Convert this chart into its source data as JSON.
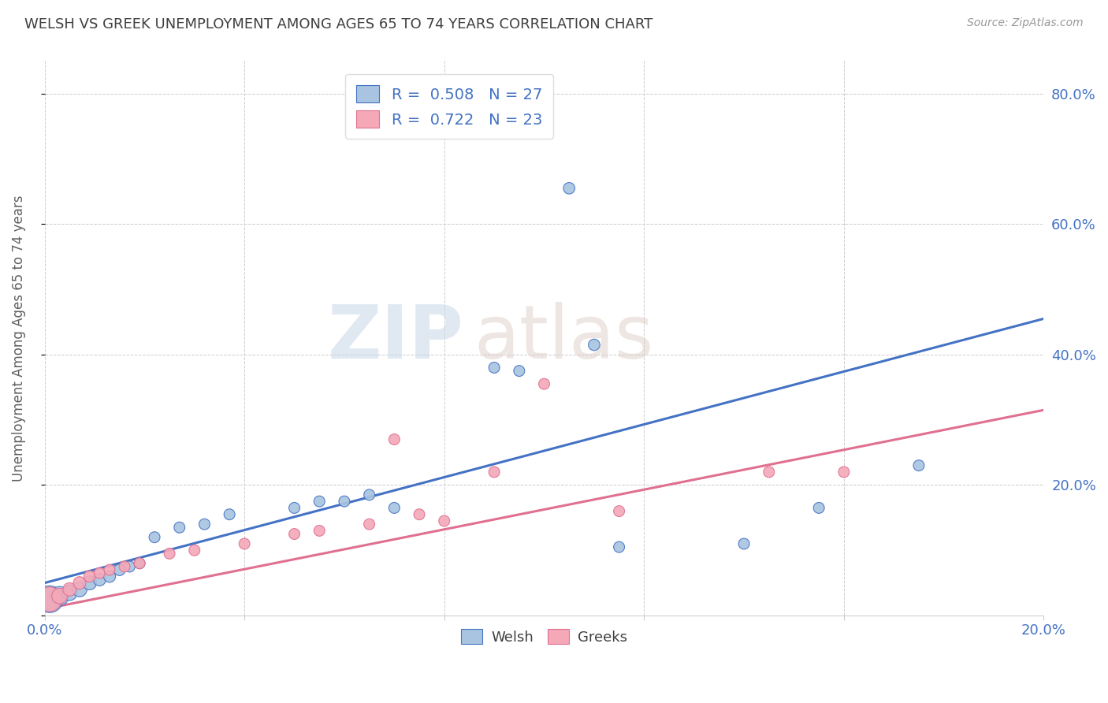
{
  "title": "WELSH VS GREEK UNEMPLOYMENT AMONG AGES 65 TO 74 YEARS CORRELATION CHART",
  "source": "Source: ZipAtlas.com",
  "ylabel": "Unemployment Among Ages 65 to 74 years",
  "xlim": [
    0.0,
    0.2
  ],
  "ylim": [
    0.0,
    0.85
  ],
  "x_ticks": [
    0.0,
    0.04,
    0.08,
    0.12,
    0.16,
    0.2
  ],
  "x_tick_labels": [
    "0.0%",
    "",
    "",
    "",
    "",
    "20.0%"
  ],
  "y_ticks": [
    0.0,
    0.2,
    0.4,
    0.6,
    0.8
  ],
  "y_tick_labels": [
    "",
    "20.0%",
    "40.0%",
    "60.0%",
    "80.0%"
  ],
  "welsh_color": "#a8c4e0",
  "greek_color": "#f4a8b8",
  "welsh_line_color": "#4472c4",
  "greek_line_color": "#e07090",
  "welsh_R": 0.508,
  "welsh_N": 27,
  "greek_R": 0.722,
  "greek_N": 23,
  "watermark_zip": "ZIP",
  "watermark_atlas": "atlas",
  "welsh_x": [
    0.001,
    0.003,
    0.005,
    0.007,
    0.009,
    0.011,
    0.013,
    0.015,
    0.017,
    0.019,
    0.022,
    0.027,
    0.032,
    0.037,
    0.05,
    0.055,
    0.06,
    0.065,
    0.07,
    0.09,
    0.095,
    0.105,
    0.11,
    0.115,
    0.14,
    0.155,
    0.175
  ],
  "welsh_y": [
    0.025,
    0.03,
    0.035,
    0.04,
    0.05,
    0.055,
    0.06,
    0.07,
    0.075,
    0.08,
    0.12,
    0.135,
    0.14,
    0.155,
    0.165,
    0.175,
    0.175,
    0.185,
    0.165,
    0.38,
    0.375,
    0.655,
    0.415,
    0.105,
    0.11,
    0.165,
    0.23
  ],
  "welsh_size": [
    600,
    300,
    200,
    180,
    160,
    130,
    120,
    110,
    100,
    100,
    100,
    100,
    100,
    100,
    100,
    100,
    100,
    100,
    100,
    100,
    100,
    110,
    110,
    100,
    100,
    100,
    100
  ],
  "greek_x": [
    0.001,
    0.003,
    0.005,
    0.007,
    0.009,
    0.011,
    0.013,
    0.016,
    0.019,
    0.025,
    0.03,
    0.04,
    0.05,
    0.055,
    0.065,
    0.07,
    0.075,
    0.08,
    0.09,
    0.1,
    0.115,
    0.145,
    0.16
  ],
  "greek_y": [
    0.025,
    0.03,
    0.04,
    0.05,
    0.06,
    0.065,
    0.07,
    0.075,
    0.08,
    0.095,
    0.1,
    0.11,
    0.125,
    0.13,
    0.14,
    0.27,
    0.155,
    0.145,
    0.22,
    0.355,
    0.16,
    0.22,
    0.22
  ],
  "greek_size": [
    500,
    200,
    150,
    130,
    110,
    100,
    100,
    100,
    100,
    100,
    100,
    100,
    100,
    100,
    100,
    100,
    100,
    100,
    100,
    100,
    100,
    100,
    100
  ],
  "bg_color": "#ffffff",
  "grid_color": "#cccccc",
  "tick_label_color": "#4472c4",
  "title_color": "#404040",
  "axis_label_color": "#606060",
  "welsh_line_x0": 0.0,
  "welsh_line_x1": 0.2,
  "welsh_line_y0": 0.05,
  "welsh_line_y1": 0.455,
  "greek_line_x0": 0.0,
  "greek_line_x1": 0.2,
  "greek_line_y0": 0.01,
  "greek_line_y1": 0.315
}
